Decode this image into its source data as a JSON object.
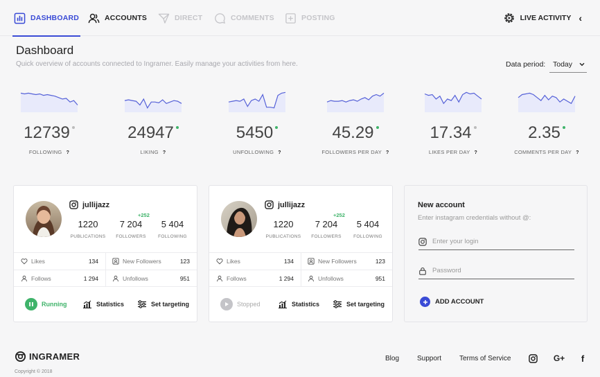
{
  "nav": {
    "tabs": [
      {
        "label": "DASHBOARD",
        "state": "active",
        "icon": "grid-icon"
      },
      {
        "label": "ACCOUNTS",
        "state": "normal",
        "icon": "users-icon"
      },
      {
        "label": "DIRECT",
        "state": "disabled",
        "icon": "send-icon"
      },
      {
        "label": "COMMENTS",
        "state": "disabled",
        "icon": "comment-icon"
      },
      {
        "label": "POSTING",
        "state": "disabled",
        "icon": "plus-square-icon"
      }
    ],
    "live_activity": "LIVE ACTIVITY",
    "live_icon": "gear-icon",
    "live_chevron": "‹"
  },
  "header": {
    "title": "Dashboard",
    "subtitle": "Quick overview of accounts connected to Ingramer. Easily manage your activities from here.",
    "period_label": "Data period:",
    "period_value": "Today"
  },
  "stats": [
    {
      "value": "12739",
      "label": "FOLLOWING",
      "help": "?",
      "status": "#bbbbbb",
      "spark": [
        6,
        7,
        6,
        7,
        8,
        7,
        9,
        8,
        9,
        10,
        12,
        14,
        13,
        18,
        16,
        22
      ]
    },
    {
      "value": "24947",
      "label": "LIKING",
      "help": "?",
      "status": "#3fb36a",
      "spark": [
        16,
        15,
        16,
        17,
        22,
        14,
        26,
        18,
        18,
        19,
        15,
        20,
        18,
        16,
        17,
        20
      ]
    },
    {
      "value": "5450",
      "label": "UNFOLLOWING",
      "help": "?",
      "status": "#3fb36a",
      "spark": [
        18,
        17,
        16,
        17,
        14,
        24,
        16,
        14,
        17,
        8,
        25,
        25,
        26,
        9,
        6,
        5
      ]
    },
    {
      "value": "45.29",
      "label": "FOLLOWERS PER DAY",
      "help": "?",
      "status": "#3fb36a",
      "spark": [
        18,
        16,
        17,
        17,
        16,
        18,
        16,
        15,
        17,
        14,
        12,
        15,
        10,
        8,
        10,
        6
      ]
    },
    {
      "value": "17.34",
      "label": "LIKES PER DAY",
      "help": "?",
      "status": "#bbbbbb",
      "spark": [
        7,
        9,
        8,
        14,
        10,
        20,
        14,
        16,
        9,
        18,
        8,
        5,
        7,
        6,
        10,
        14
      ]
    },
    {
      "value": "2.35",
      "label": "COMMENTS PER DAY",
      "help": "?",
      "status": "#3fb36a",
      "spark": [
        12,
        8,
        7,
        6,
        8,
        12,
        16,
        9,
        15,
        10,
        12,
        18,
        14,
        17,
        20,
        10
      ]
    }
  ],
  "accounts": [
    {
      "username": "jullijazz",
      "followers_delta": "+252",
      "publications": "1220",
      "publications_label": "PUBLICATIONS",
      "followers": "7 204",
      "followers_label": "FOLLOWERS",
      "following": "5 404",
      "following_label": "FOLLOWING",
      "likes_label": "Likes",
      "likes": "134",
      "new_followers_label": "New Followers",
      "new_followers": "123",
      "follows_label": "Follows",
      "follows": "1 294",
      "unfollows_label": "Unfollows",
      "unfollows": "951",
      "status_label": "Running",
      "statistics_label": "Statistics",
      "targeting_label": "Set targeting"
    },
    {
      "username": "jullijazz",
      "followers_delta": "+252",
      "publications": "1220",
      "publications_label": "PUBLICATIONS",
      "followers": "7 204",
      "followers_label": "FOLLOWERS",
      "following": "5 404",
      "following_label": "FOLLOWING",
      "likes_label": "Likes",
      "likes": "134",
      "new_followers_label": "New Followers",
      "new_followers": "123",
      "follows_label": "Follows",
      "follows": "1 294",
      "unfollows_label": "Unfollows",
      "unfollows": "951",
      "status_label": "Stopped",
      "statistics_label": "Statistics",
      "targeting_label": "Set targeting"
    }
  ],
  "new_account": {
    "title": "New account",
    "subtitle": "Enter instagram credentials without @:",
    "login_placeholder": "Enter your login",
    "password_placeholder": "Password",
    "add_label": "ADD ACCOUNT"
  },
  "footer": {
    "brand": "INGRAMER",
    "copyright": "Copyright © 2018",
    "links": [
      "Blog",
      "Support",
      "Terms of Service"
    ],
    "social": [
      "instagram-icon",
      "google-plus-icon",
      "facebook-icon"
    ],
    "gplus_text": "G+",
    "fb_text": "f"
  },
  "colors": {
    "accent": "#3a4bd6",
    "running": "#3fb36a",
    "spark_line": "#5561d8",
    "spark_fill": "#e8eafb"
  }
}
